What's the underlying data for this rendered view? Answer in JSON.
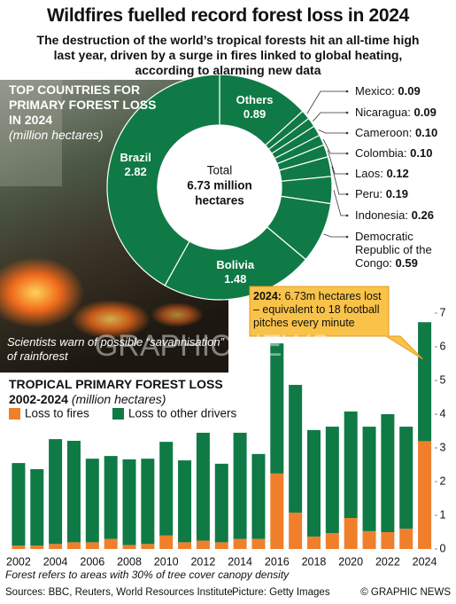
{
  "title": "Wildfires fuelled record forest loss in 2024",
  "subtitle": "The destruction of the world’s tropical forests hit an all-time high last year, driven by a surge in fires linked to global heating, according to alarming new data",
  "watermark": "GRAPHIC NEWS",
  "footnote": "Forest refers to areas with 30% of tree cover canopy density",
  "sources": "Sources: BBC, Reuters, World Resources Institute",
  "picture_credit": "Picture: Getty Images",
  "copyright": "© GRAPHIC NEWS",
  "chart_data": [
    {
      "type": "donut",
      "title": "TOP COUNTRIES FOR PRIMARY FOREST LOSS IN 2024",
      "subtitle": "(million hectares)",
      "center_label": [
        "Total",
        "6.73 million",
        "hectares"
      ],
      "caption": "Scientists warn of possible “savannisation” of rainforest",
      "color": "#0f7a46",
      "categories": [
        "Others",
        "Mexico:",
        "Nicaragua:",
        "Cameroon:",
        "Colombia:",
        "Laos:",
        "Peru:",
        "Indonesia:",
        "Democratic Republic of the Congo:",
        "Bolivia",
        "Brazil"
      ],
      "values": [
        0.89,
        0.09,
        0.09,
        0.1,
        0.1,
        0.12,
        0.19,
        0.26,
        0.59,
        1.48,
        2.82
      ],
      "value_labels": [
        "0.89",
        "0.09",
        "0.09",
        "0.10",
        "0.10",
        "0.12",
        "0.19",
        "0.26",
        "0.59",
        "1.48",
        "2.82"
      ]
    },
    {
      "type": "bar",
      "stacked": true,
      "title": "TROPICAL PRIMARY FOREST LOSS 2002-2024",
      "subtitle": "(million hectares)",
      "y_axis_side": "right",
      "categories": [
        "2002",
        null,
        "2004",
        null,
        "2006",
        null,
        "2008",
        null,
        "2010",
        null,
        "2012",
        null,
        "2014",
        null,
        "2016",
        null,
        "2018",
        null,
        "2020",
        null,
        "2022",
        null,
        "2024"
      ],
      "series": [
        {
          "name": "Loss to fires",
          "color": "#f07f2c",
          "values": [
            0.1,
            0.1,
            0.15,
            0.2,
            0.2,
            0.3,
            0.12,
            0.15,
            0.4,
            0.2,
            0.25,
            0.2,
            0.3,
            0.3,
            2.24,
            1.08,
            0.37,
            0.47,
            0.92,
            0.53,
            0.5,
            0.6,
            3.2
          ]
        },
        {
          "name": "Loss to other drivers",
          "color": "#0f7a46",
          "values": [
            2.45,
            2.27,
            3.11,
            3.01,
            2.48,
            2.46,
            2.54,
            2.53,
            2.78,
            2.43,
            3.2,
            2.33,
            3.15,
            2.52,
            3.86,
            3.79,
            3.16,
            3.16,
            3.16,
            3.1,
            3.5,
            3.03,
            3.53
          ]
        }
      ],
      "ylim": [
        0,
        7
      ],
      "yticks": [
        0,
        1,
        2,
        3,
        4,
        5,
        6,
        7
      ],
      "annotation": {
        "label": "2024:",
        "text": "6.73m hectares lost – equivalent to 18 football pitches every minute"
      }
    }
  ]
}
